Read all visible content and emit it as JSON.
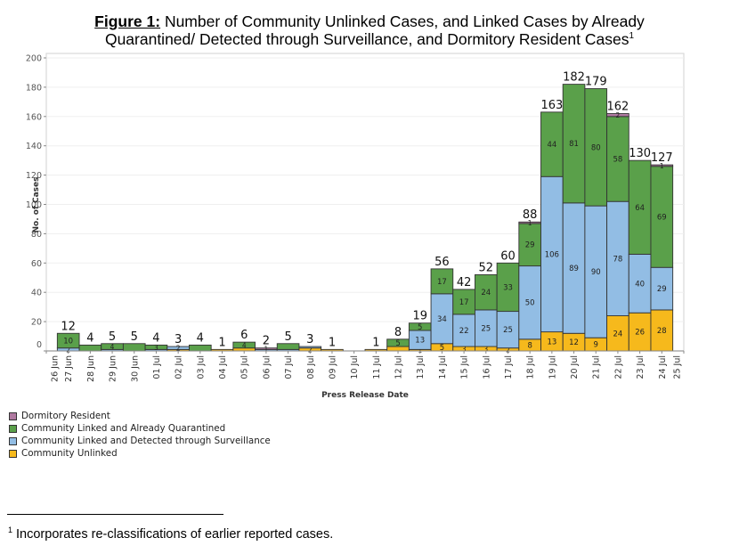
{
  "title": {
    "prefix": "Figure 1:",
    "line1": " Number of Community Unlinked Cases, and Linked Cases by Already",
    "line2": "Quarantined/ Detected through Surveillance, and Dormitory Resident Cases",
    "superscript": "1"
  },
  "footnote": {
    "marker": "1",
    "text": "Incorporates re-classifications of earlier reported cases."
  },
  "chart_data": {
    "type": "bar",
    "stacked": true,
    "title": "Number of Community Unlinked Cases, and Linked Cases by Already Quarantined/ Detected through Surveillance, and Dormitory Resident Cases",
    "xlabel": "Press Release Date",
    "ylabel": "No. of Cases",
    "ylim": [
      0,
      200
    ],
    "yticks": [
      0,
      20,
      40,
      60,
      80,
      100,
      120,
      140,
      160,
      180,
      200
    ],
    "grid": true,
    "legend_position": "bottom-left",
    "axis_labels": [
      "26 Jun",
      "27 Jun",
      "28 Jun",
      "29 Jun",
      "30 Jun",
      "01 Jul",
      "02 Jul",
      "03 Jul",
      "04 Jul",
      "05 Jul",
      "06 Jul",
      "07 Jul",
      "08 Jul",
      "09 Jul",
      "10 Jul",
      "11 Jul",
      "12 Jul",
      "13 Jul",
      "14 Jul",
      "15 Jul",
      "16 Jul",
      "17 Jul",
      "18 Jul",
      "19 Jul",
      "20 Jul",
      "21 Jul",
      "22 Jul",
      "23 Jul",
      "24 Jul",
      "25 Jul"
    ],
    "categories": [
      "27 Jun",
      "28 Jun",
      "29 Jun",
      "30 Jun",
      "01 Jul",
      "02 Jul",
      "03 Jul",
      "04 Jul",
      "05 Jul",
      "06 Jul",
      "07 Jul",
      "08 Jul",
      "09 Jul",
      "10 Jul",
      "11 Jul",
      "12 Jul",
      "13 Jul",
      "14 Jul",
      "15 Jul",
      "16 Jul",
      "17 Jul",
      "18 Jul",
      "19 Jul",
      "20 Jul",
      "21 Jul",
      "22 Jul",
      "23 Jul",
      "24 Jul"
    ],
    "series": [
      {
        "name": "Community Unlinked",
        "color": "#f6b91c",
        "values": [
          0,
          0,
          0,
          0,
          0,
          1,
          0,
          1,
          2,
          0,
          0,
          2,
          1,
          0,
          1,
          3,
          1,
          5,
          3,
          3,
          2,
          8,
          13,
          12,
          9,
          24,
          26,
          28
        ],
        "show_labels": [
          false,
          false,
          false,
          false,
          false,
          false,
          false,
          false,
          false,
          false,
          false,
          true,
          false,
          false,
          false,
          false,
          true,
          true,
          true,
          true,
          true,
          true,
          true,
          true,
          true,
          true,
          true,
          true
        ]
      },
      {
        "name": "Community Linked and Detected through Surveillance",
        "color": "#92bde4",
        "values": [
          2,
          0,
          1,
          0,
          1,
          2,
          0,
          0,
          0,
          1,
          1,
          1,
          0,
          0,
          0,
          0,
          13,
          34,
          22,
          25,
          25,
          50,
          106,
          89,
          90,
          78,
          40,
          29
        ],
        "show_labels": [
          true,
          false,
          false,
          false,
          false,
          true,
          false,
          false,
          false,
          false,
          false,
          false,
          false,
          false,
          false,
          false,
          true,
          true,
          true,
          true,
          true,
          true,
          true,
          true,
          true,
          true,
          true,
          true
        ]
      },
      {
        "name": "Community Linked and Already Quarantined",
        "color": "#5aa04a",
        "values": [
          10,
          4,
          4,
          5,
          3,
          0,
          4,
          0,
          4,
          0,
          4,
          0,
          0,
          0,
          0,
          5,
          5,
          17,
          17,
          24,
          33,
          29,
          44,
          81,
          80,
          58,
          64,
          69
        ],
        "show_labels": [
          true,
          false,
          true,
          false,
          true,
          false,
          false,
          false,
          true,
          false,
          false,
          false,
          false,
          false,
          false,
          true,
          true,
          true,
          true,
          true,
          true,
          true,
          true,
          true,
          true,
          true,
          true,
          true
        ]
      },
      {
        "name": "Dormitory Resident",
        "color": "#b07aa1",
        "values": [
          0,
          0,
          0,
          0,
          0,
          0,
          0,
          0,
          0,
          1,
          0,
          0,
          0,
          0,
          0,
          0,
          0,
          0,
          0,
          0,
          0,
          1,
          0,
          0,
          0,
          2,
          0,
          1
        ],
        "show_labels": [
          false,
          false,
          false,
          false,
          false,
          false,
          false,
          false,
          false,
          true,
          false,
          false,
          false,
          false,
          false,
          false,
          false,
          false,
          false,
          false,
          false,
          true,
          false,
          false,
          false,
          true,
          false,
          true
        ]
      }
    ],
    "totals": [
      12,
      4,
      5,
      5,
      4,
      3,
      4,
      1,
      6,
      2,
      5,
      3,
      1,
      0,
      1,
      8,
      19,
      56,
      42,
      52,
      60,
      88,
      163,
      182,
      179,
      162,
      130,
      127
    ],
    "legend_order": [
      "Dormitory Resident",
      "Community Linked and Already Quarantined",
      "Community Linked and Detected through Surveillance",
      "Community Unlinked"
    ]
  }
}
